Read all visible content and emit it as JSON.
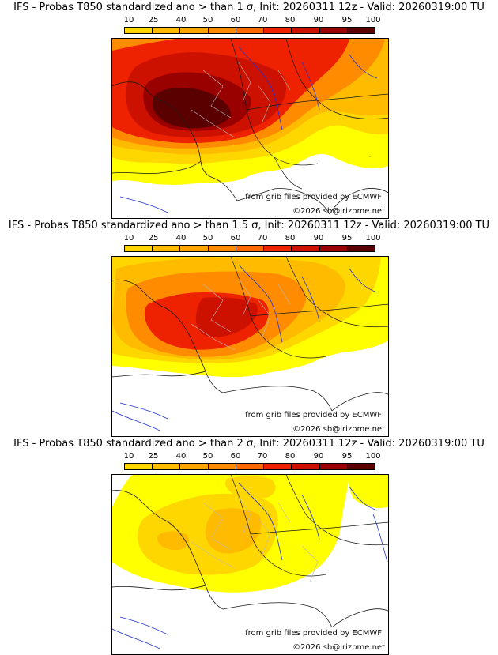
{
  "colorbar": {
    "ticks": [
      "10",
      "25",
      "40",
      "50",
      "60",
      "70",
      "80",
      "90",
      "95",
      "100"
    ],
    "colors": [
      "#ffff00",
      "#ffd700",
      "#ffbb00",
      "#ffa500",
      "#ff8c00",
      "#ff6a00",
      "#ee2200",
      "#cc1100",
      "#990000",
      "#5a0000"
    ]
  },
  "colors": {
    "land_line": "#1a1a1a",
    "river": "#2233cc",
    "admin": "#aaaaaa"
  },
  "panels": [
    {
      "title": "IFS - Probas T850  standardized ano > than 1 σ, Init: 20260311 12z - Valid: 20260319:00 TU",
      "grib_credit": "from grib files provided by ECMWF",
      "copyright": "©2026 sb@irizpme.net",
      "intensity": "high"
    },
    {
      "title": "IFS - Probas T850  standardized ano > than 1.5 σ, Init: 20260311 12z - Valid: 20260319:00 TU",
      "grib_credit": "from grib files provided by ECMWF",
      "copyright": "©2026 sb@irizpme.net",
      "intensity": "medium"
    },
    {
      "title": "IFS - Probas T850  standardized ano > than 2 σ, Init: 20260311 12z - Valid: 20260319:00 TU",
      "grib_credit": "from grib files provided by ECMWF",
      "copyright": "©2026 sb@irizpme.net",
      "intensity": "low"
    }
  ]
}
